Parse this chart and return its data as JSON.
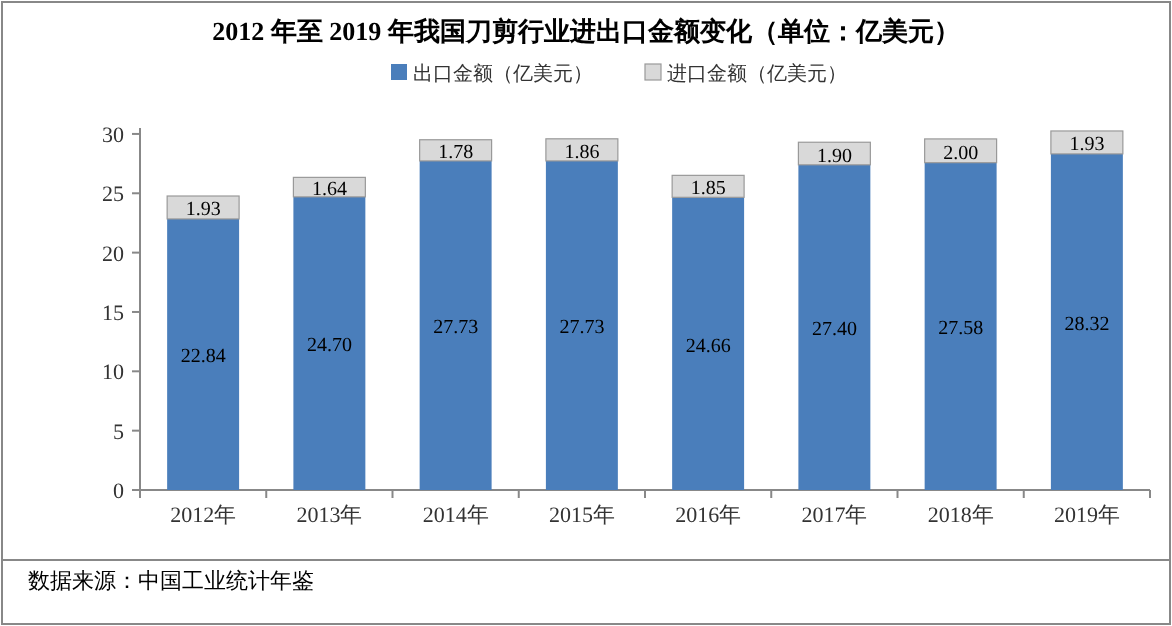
{
  "chart_data": {
    "type": "bar",
    "title": "2012 年至 2019 年我国刀剪行业进出口金额变化（单位：亿美元）",
    "categories": [
      "2012年",
      "2013年",
      "2014年",
      "2015年",
      "2016年",
      "2017年",
      "2018年",
      "2019年"
    ],
    "series": [
      {
        "name": "出口金额（亿美元）",
        "color": "#4a7ebb",
        "values": [
          22.84,
          24.7,
          27.73,
          27.73,
          24.66,
          27.4,
          27.58,
          28.32
        ],
        "value_labels": [
          "22.84",
          "24.70",
          "27.73",
          "27.73",
          "24.66",
          "27.40",
          "27.58",
          "28.32"
        ]
      },
      {
        "name": "进口金额（亿美元）",
        "color": "#d9d9d9",
        "values": [
          1.93,
          1.64,
          1.78,
          1.86,
          1.85,
          1.9,
          2.0,
          1.93
        ],
        "value_labels": [
          "1.93",
          "1.64",
          "1.78",
          "1.86",
          "1.85",
          "1.90",
          "2.00",
          "1.93"
        ]
      }
    ],
    "stacked": true,
    "ylim": [
      0,
      30.5
    ],
    "yticks": [
      0,
      5,
      10,
      15,
      20,
      25,
      30
    ],
    "legend": "top",
    "annotations": [
      "数据来源：中国工业统计年鉴"
    ]
  }
}
